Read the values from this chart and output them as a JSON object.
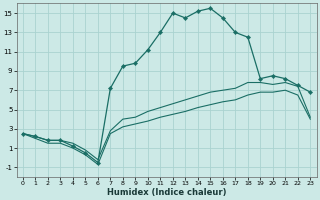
{
  "xlabel": "Humidex (Indice chaleur)",
  "bg_color": "#cce9e6",
  "grid_color": "#aad3d0",
  "line_color": "#1a6e65",
  "xlim": [
    -0.5,
    23.5
  ],
  "ylim": [
    -2.0,
    16.0
  ],
  "xticks": [
    0,
    1,
    2,
    3,
    4,
    5,
    6,
    7,
    8,
    9,
    10,
    11,
    12,
    13,
    14,
    15,
    16,
    17,
    18,
    19,
    20,
    21,
    22,
    23
  ],
  "yticks": [
    -1,
    1,
    3,
    5,
    7,
    9,
    11,
    13,
    15
  ],
  "main_x": [
    0,
    1,
    2,
    3,
    4,
    5,
    6,
    7,
    8,
    9,
    10,
    11,
    12,
    13,
    14,
    15,
    16,
    17,
    18,
    19,
    20,
    21,
    22,
    23
  ],
  "main_y": [
    2.5,
    2.2,
    1.8,
    1.8,
    1.2,
    0.5,
    -0.5,
    7.2,
    9.5,
    9.8,
    11.2,
    13.0,
    15.0,
    14.5,
    15.2,
    15.5,
    14.5,
    13.0,
    12.5,
    8.2,
    8.5,
    8.2,
    7.5,
    6.8
  ],
  "upper_x": [
    0,
    1,
    2,
    3,
    4,
    5,
    6,
    7,
    8,
    9,
    10,
    11,
    12,
    13,
    14,
    15,
    16,
    17,
    18,
    19,
    20,
    21,
    22,
    23
  ],
  "upper_y": [
    2.5,
    2.2,
    1.8,
    1.8,
    1.5,
    0.8,
    -0.2,
    2.8,
    4.0,
    4.2,
    4.8,
    5.2,
    5.6,
    6.0,
    6.4,
    6.8,
    7.0,
    7.2,
    7.8,
    7.8,
    7.6,
    7.8,
    7.4,
    4.2
  ],
  "lower_x": [
    0,
    1,
    2,
    3,
    4,
    5,
    6,
    7,
    8,
    9,
    10,
    11,
    12,
    13,
    14,
    15,
    16,
    17,
    18,
    19,
    20,
    21,
    22,
    23
  ],
  "lower_y": [
    2.5,
    2.0,
    1.5,
    1.5,
    1.0,
    0.3,
    -0.7,
    2.5,
    3.2,
    3.5,
    3.8,
    4.2,
    4.5,
    4.8,
    5.2,
    5.5,
    5.8,
    6.0,
    6.5,
    6.8,
    6.8,
    7.0,
    6.5,
    4.0
  ]
}
